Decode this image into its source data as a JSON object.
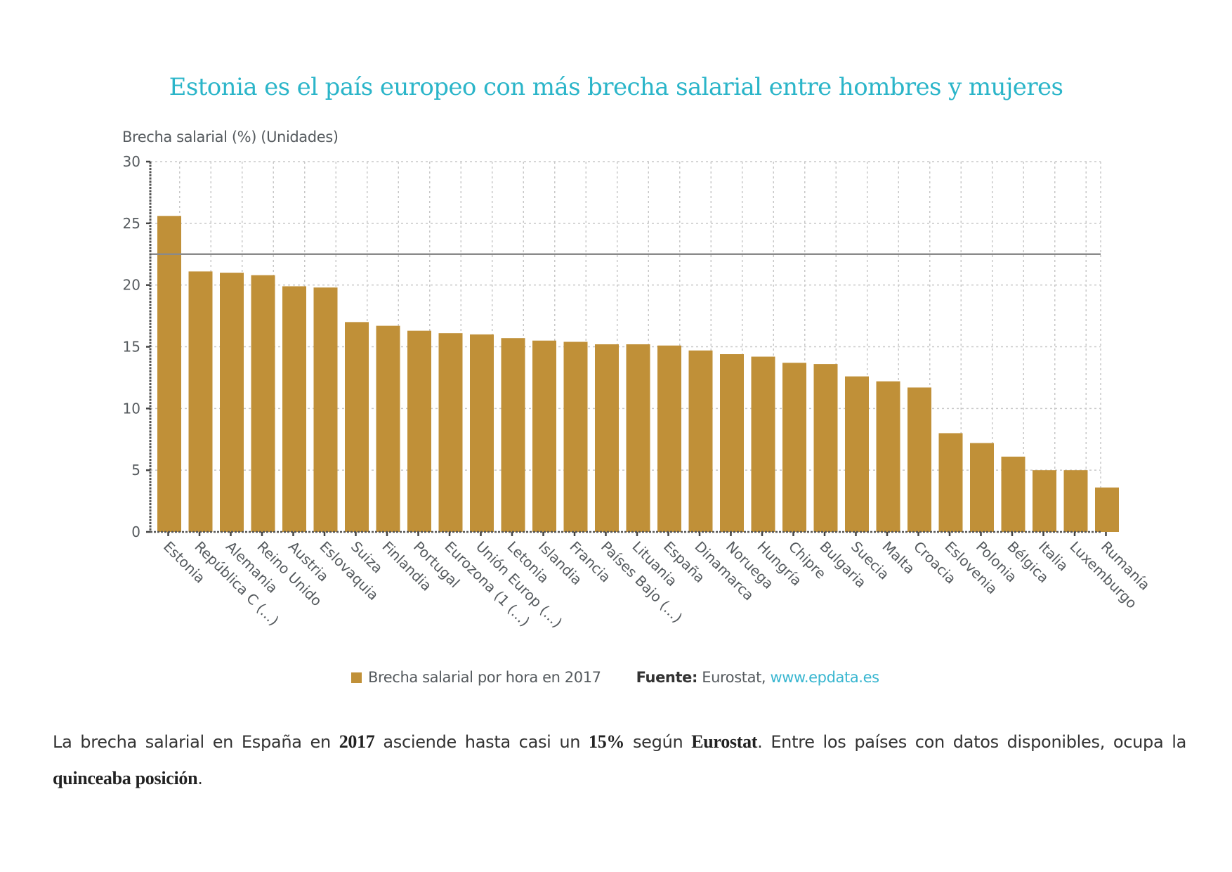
{
  "chart_data": {
    "type": "bar",
    "title": "Estonia es el país europeo con más brecha salarial entre hombres y mujeres",
    "ylabel": "Brecha salarial (%) (Unidades)",
    "xlabel": "",
    "ylim": [
      0,
      30
    ],
    "yticks": [
      0,
      5,
      10,
      15,
      20,
      25,
      30
    ],
    "grid": true,
    "reference_line": 22.5,
    "categories": [
      "Estonia",
      "República C (...)",
      "Alemania",
      "Reino Unido",
      "Austria",
      "Eslovaquia",
      "Suiza",
      "Finlandia",
      "Portugal",
      "Eurozona (1 (...)",
      "Unión Europ (...)",
      "Letonia",
      "Islandia",
      "Francia",
      "Países Bajo (...)",
      "Lituania",
      "España",
      "Dinamarca",
      "Noruega",
      "Hungría",
      "Chipre",
      "Bulgaria",
      "Suecia",
      "Malta",
      "Croacia",
      "Eslovenia",
      "Polonia",
      "Bélgica",
      "Italia",
      "Luxemburgo",
      "Rumanía"
    ],
    "series": [
      {
        "name": "Brecha salarial por hora en 2017",
        "color": "#c09038",
        "values": [
          25.6,
          21.1,
          21.0,
          20.8,
          19.9,
          19.8,
          17.0,
          16.7,
          16.3,
          16.1,
          16.0,
          15.7,
          15.5,
          15.4,
          15.2,
          15.2,
          15.1,
          14.7,
          14.4,
          14.2,
          13.7,
          13.6,
          12.6,
          12.2,
          11.7,
          8.0,
          7.2,
          6.1,
          5.0,
          5.0,
          3.6
        ]
      }
    ],
    "legend": {
      "placement": "bottom",
      "series_label": "Brecha salarial por hora en 2017",
      "source_label": "Fuente:",
      "source_text": "Eurostat,",
      "source_link": "www.epdata.es"
    }
  },
  "colors": {
    "title": "#2bb5c9",
    "bar": "#c09038",
    "link": "#38b6d0"
  },
  "paragraph": {
    "t1": "La brecha salarial en España en ",
    "b1": "2017",
    "t2": " asciende hasta casi un ",
    "b2": "15%",
    "t3": " según ",
    "b3": "Eurostat",
    "t4": ". Entre los países con datos disponibles, ocupa la ",
    "b4": "quinceaba posición",
    "t5": "."
  }
}
